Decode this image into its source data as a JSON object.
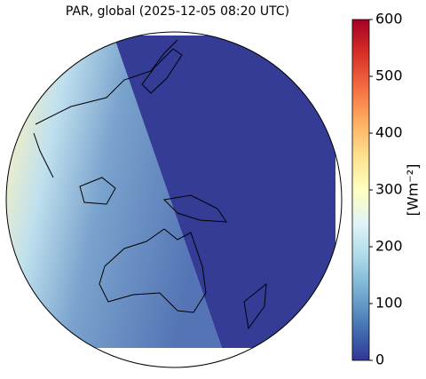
{
  "map": {
    "title": "PAR, global (2025-12-05 08:20 UTC)",
    "colorbar": {
      "label": "[Wm⁻²]",
      "lim": [
        0,
        600
      ],
      "ticks": [
        0,
        100,
        200,
        300,
        400,
        500,
        600
      ]
    }
  }
}
